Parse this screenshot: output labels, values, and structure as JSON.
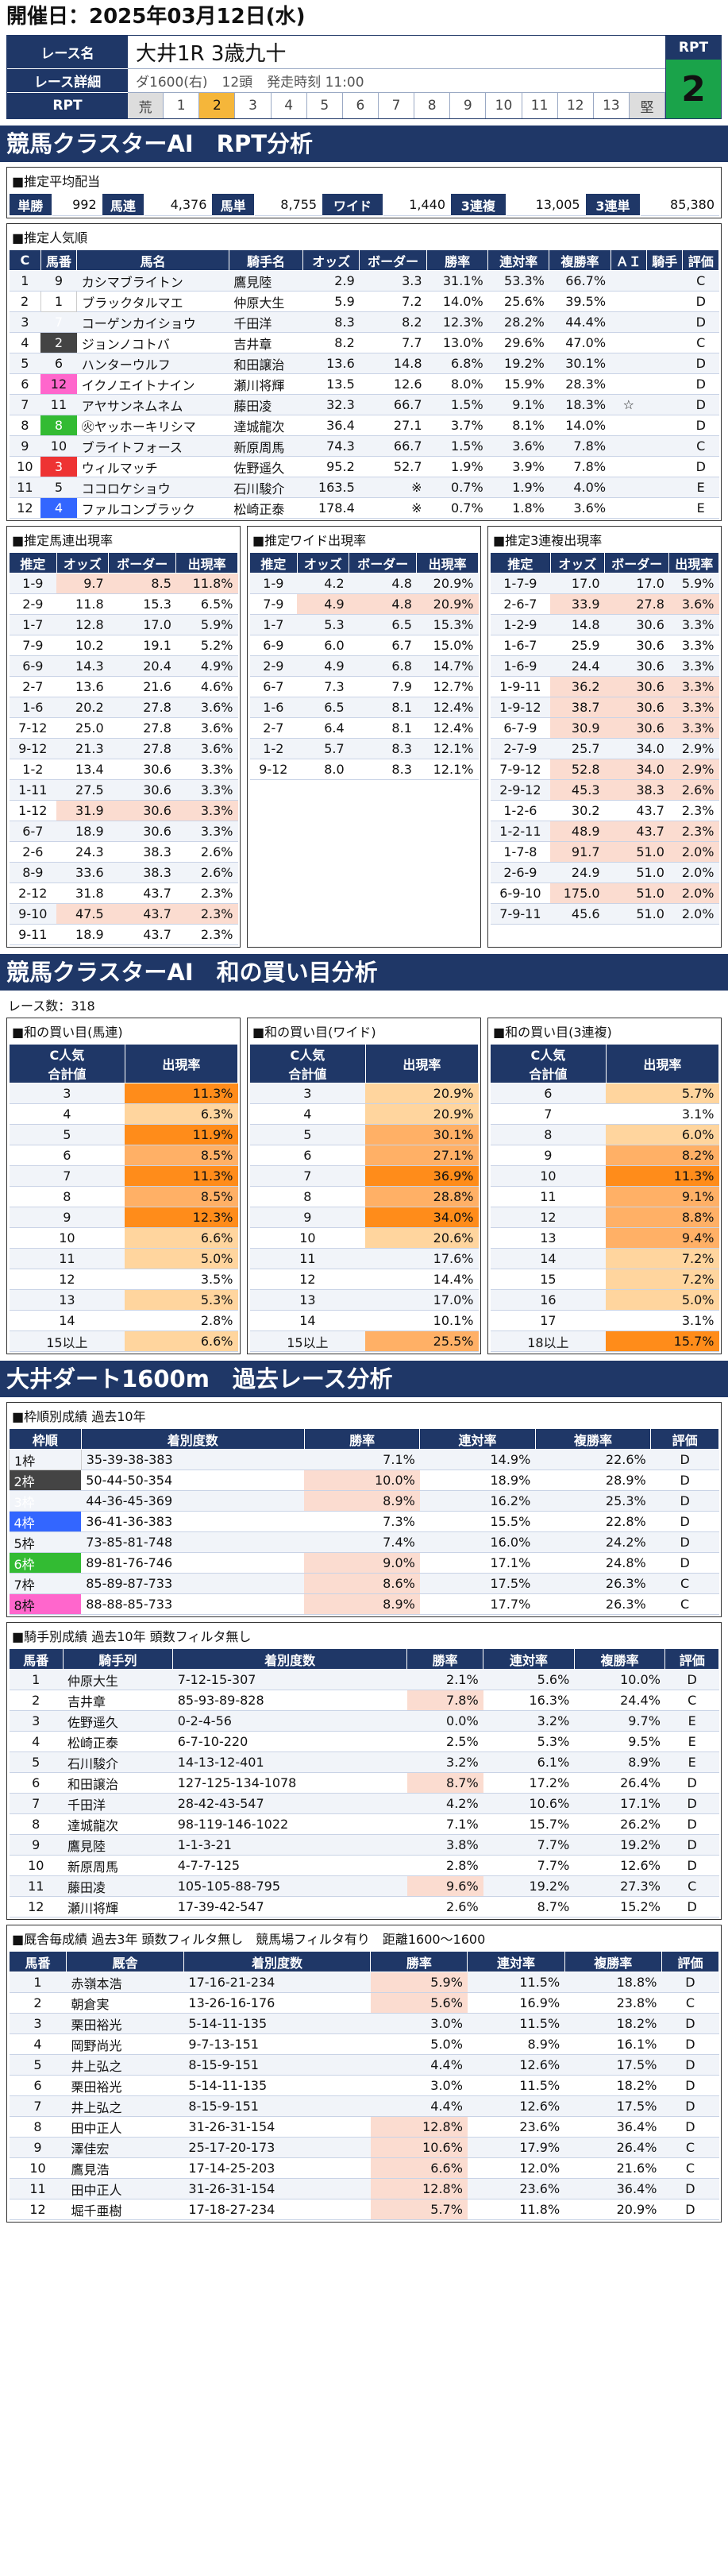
{
  "date_label": "開催日：2025年03月12日(水)",
  "race": {
    "name_label": "レース名",
    "name": "大井1R 3歳九十",
    "detail_label": "レース詳細",
    "course": "ダ1600(右)",
    "heads": "12頭",
    "start": "発走時刻 11:00",
    "rpt_label": "RPT",
    "scale": [
      "荒",
      "1",
      "2",
      "3",
      "4",
      "5",
      "6",
      "7",
      "8",
      "9",
      "10",
      "11",
      "12",
      "13",
      "堅"
    ],
    "rpt_title": "RPT",
    "rpt_value": "2"
  },
  "sec1": "競馬クラスターAI　RPT分析",
  "avg": {
    "title": "■推定平均配当",
    "items": [
      [
        "単勝",
        "992"
      ],
      [
        "馬連",
        "4,376"
      ],
      [
        "馬単",
        "8,755"
      ],
      [
        "ワイド",
        "1,440"
      ],
      [
        "3連複",
        "13,005"
      ],
      [
        "3連単",
        "85,380"
      ]
    ]
  },
  "pop": {
    "title": "■推定人気順",
    "headers": [
      "C",
      "馬番",
      "馬名",
      "騎手名",
      "オッズ",
      "ボーダー",
      "勝率",
      "連対率",
      "複勝率",
      "ＡＩ",
      "騎手",
      "評価"
    ],
    "rows": [
      [
        "1",
        "9",
        "カシマブライトン",
        "鷹見陸",
        "2.9",
        "3.3",
        "31.1%",
        "53.3%",
        "66.7%",
        "",
        "",
        "C"
      ],
      [
        "2",
        "1",
        "ブラックタルマエ",
        "仲原大生",
        "5.9",
        "7.2",
        "14.0%",
        "25.6%",
        "39.5%",
        "",
        "",
        "D"
      ],
      [
        "3",
        "7",
        "コーゲンカイショウ",
        "千田洋",
        "8.3",
        "8.2",
        "12.3%",
        "28.2%",
        "44.4%",
        "",
        "",
        "D"
      ],
      [
        "4",
        "2",
        "ジョンノコトバ",
        "吉井章",
        "8.2",
        "7.7",
        "13.0%",
        "29.6%",
        "47.0%",
        "",
        "",
        "C"
      ],
      [
        "5",
        "6",
        "ハンターウルフ",
        "和田譲治",
        "13.6",
        "14.8",
        "6.8%",
        "19.2%",
        "30.1%",
        "",
        "",
        "D"
      ],
      [
        "6",
        "12",
        "イクノエイトナイン",
        "瀬川将輝",
        "13.5",
        "12.6",
        "8.0%",
        "15.9%",
        "28.3%",
        "",
        "",
        "D"
      ],
      [
        "7",
        "11",
        "アヤサンネムネム",
        "藤田凌",
        "32.3",
        "66.7",
        "1.5%",
        "9.1%",
        "18.3%",
        "☆",
        "",
        "D"
      ],
      [
        "8",
        "8",
        "㊋ヤッホーキリシマ",
        "達城龍次",
        "36.4",
        "27.1",
        "3.7%",
        "8.1%",
        "14.0%",
        "",
        "",
        "D"
      ],
      [
        "9",
        "10",
        "ブライトフォース",
        "新原周馬",
        "74.3",
        "66.7",
        "1.5%",
        "3.6%",
        "7.8%",
        "",
        "",
        "C"
      ],
      [
        "10",
        "3",
        "ウィルマッチ",
        "佐野遥久",
        "95.2",
        "52.7",
        "1.9%",
        "3.9%",
        "7.8%",
        "",
        "",
        "D"
      ],
      [
        "11",
        "5",
        "ココロケショウ",
        "石川駿介",
        "163.5",
        "※",
        "0.7%",
        "1.9%",
        "4.0%",
        "",
        "",
        "E"
      ],
      [
        "12",
        "4",
        "ファルコンブラック",
        "松崎正泰",
        "178.4",
        "※",
        "0.7%",
        "1.8%",
        "3.6%",
        "",
        "",
        "E"
      ]
    ]
  },
  "umaren": {
    "title": "■推定馬連出現率",
    "headers": [
      "推定",
      "オッズ",
      "ボーダー",
      "出現率"
    ],
    "rows": [
      [
        "1-9",
        "9.7",
        "8.5",
        "11.8%"
      ],
      [
        "2-9",
        "11.8",
        "15.3",
        "6.5%"
      ],
      [
        "1-7",
        "12.8",
        "17.0",
        "5.9%"
      ],
      [
        "7-9",
        "10.2",
        "19.1",
        "5.2%"
      ],
      [
        "6-9",
        "14.3",
        "20.4",
        "4.9%"
      ],
      [
        "2-7",
        "13.6",
        "21.6",
        "4.6%"
      ],
      [
        "1-6",
        "20.2",
        "27.8",
        "3.6%"
      ],
      [
        "7-12",
        "25.0",
        "27.8",
        "3.6%"
      ],
      [
        "9-12",
        "21.3",
        "27.8",
        "3.6%"
      ],
      [
        "1-2",
        "13.4",
        "30.6",
        "3.3%"
      ],
      [
        "1-11",
        "27.5",
        "30.6",
        "3.3%"
      ],
      [
        "1-12",
        "31.9",
        "30.6",
        "3.3%"
      ],
      [
        "6-7",
        "18.9",
        "30.6",
        "3.3%"
      ],
      [
        "2-6",
        "24.3",
        "38.3",
        "2.6%"
      ],
      [
        "8-9",
        "33.6",
        "38.3",
        "2.6%"
      ],
      [
        "2-12",
        "31.8",
        "43.7",
        "2.3%"
      ],
      [
        "9-10",
        "47.5",
        "43.7",
        "2.3%"
      ],
      [
        "9-11",
        "18.9",
        "43.7",
        "2.3%"
      ]
    ]
  },
  "wide": {
    "title": "■推定ワイド出現率",
    "headers": [
      "推定",
      "オッズ",
      "ボーダー",
      "出現率"
    ],
    "rows": [
      [
        "1-9",
        "4.2",
        "4.8",
        "20.9%"
      ],
      [
        "7-9",
        "4.9",
        "4.8",
        "20.9%"
      ],
      [
        "1-7",
        "5.3",
        "6.5",
        "15.3%"
      ],
      [
        "6-9",
        "6.0",
        "6.7",
        "15.0%"
      ],
      [
        "2-9",
        "4.9",
        "6.8",
        "14.7%"
      ],
      [
        "6-7",
        "7.3",
        "7.9",
        "12.7%"
      ],
      [
        "1-6",
        "6.5",
        "8.1",
        "12.4%"
      ],
      [
        "2-7",
        "6.4",
        "8.1",
        "12.4%"
      ],
      [
        "1-2",
        "5.7",
        "8.3",
        "12.1%"
      ],
      [
        "9-12",
        "8.0",
        "8.3",
        "12.1%"
      ]
    ]
  },
  "trio": {
    "title": "■推定3連複出現率",
    "headers": [
      "推定",
      "オッズ",
      "ボーダー",
      "出現率"
    ],
    "rows": [
      [
        "1-7-9",
        "17.0",
        "17.0",
        "5.9%"
      ],
      [
        "2-6-7",
        "33.9",
        "27.8",
        "3.6%"
      ],
      [
        "1-2-9",
        "14.8",
        "30.6",
        "3.3%"
      ],
      [
        "1-6-7",
        "25.9",
        "30.6",
        "3.3%"
      ],
      [
        "1-6-9",
        "24.4",
        "30.6",
        "3.3%"
      ],
      [
        "1-9-11",
        "36.2",
        "30.6",
        "3.3%"
      ],
      [
        "1-9-12",
        "38.7",
        "30.6",
        "3.3%"
      ],
      [
        "6-7-9",
        "30.9",
        "30.6",
        "3.3%"
      ],
      [
        "2-7-9",
        "25.7",
        "34.0",
        "2.9%"
      ],
      [
        "7-9-12",
        "52.8",
        "34.0",
        "2.9%"
      ],
      [
        "2-9-12",
        "45.3",
        "38.3",
        "2.6%"
      ],
      [
        "1-2-6",
        "30.2",
        "43.7",
        "2.3%"
      ],
      [
        "1-2-11",
        "48.9",
        "43.7",
        "2.3%"
      ],
      [
        "1-7-8",
        "91.7",
        "51.0",
        "2.0%"
      ],
      [
        "2-6-9",
        "24.9",
        "51.0",
        "2.0%"
      ],
      [
        "6-9-10",
        "175.0",
        "51.0",
        "2.0%"
      ],
      [
        "7-9-11",
        "45.6",
        "51.0",
        "2.0%"
      ]
    ]
  },
  "sec2": "競馬クラスターAI　和の買い目分析",
  "race_count": "レース数：318",
  "sum_umaren": {
    "title": "■和の買い目(馬連)",
    "headers": [
      "C人気\n合計値",
      "出現率"
    ],
    "rows": [
      [
        "3",
        "11.3%"
      ],
      [
        "4",
        "6.3%"
      ],
      [
        "5",
        "11.9%"
      ],
      [
        "6",
        "8.5%"
      ],
      [
        "7",
        "11.3%"
      ],
      [
        "8",
        "8.5%"
      ],
      [
        "9",
        "12.3%"
      ],
      [
        "10",
        "6.6%"
      ],
      [
        "11",
        "5.0%"
      ],
      [
        "12",
        "3.5%"
      ],
      [
        "13",
        "5.3%"
      ],
      [
        "14",
        "2.8%"
      ],
      [
        "15以上",
        "6.6%"
      ]
    ]
  },
  "sum_wide": {
    "title": "■和の買い目(ワイド)",
    "headers": [
      "C人気\n合計値",
      "出現率"
    ],
    "rows": [
      [
        "3",
        "20.9%"
      ],
      [
        "4",
        "20.9%"
      ],
      [
        "5",
        "30.1%"
      ],
      [
        "6",
        "27.1%"
      ],
      [
        "7",
        "36.9%"
      ],
      [
        "8",
        "28.8%"
      ],
      [
        "9",
        "34.0%"
      ],
      [
        "10",
        "20.6%"
      ],
      [
        "11",
        "17.6%"
      ],
      [
        "12",
        "14.4%"
      ],
      [
        "13",
        "17.0%"
      ],
      [
        "14",
        "10.1%"
      ],
      [
        "15以上",
        "25.5%"
      ]
    ]
  },
  "sum_trio": {
    "title": "■和の買い目(3連複)",
    "headers": [
      "C人気\n合計値",
      "出現率"
    ],
    "rows": [
      [
        "6",
        "5.7%"
      ],
      [
        "7",
        "3.1%"
      ],
      [
        "8",
        "6.0%"
      ],
      [
        "9",
        "8.2%"
      ],
      [
        "10",
        "11.3%"
      ],
      [
        "11",
        "9.1%"
      ],
      [
        "12",
        "8.8%"
      ],
      [
        "13",
        "9.4%"
      ],
      [
        "14",
        "7.2%"
      ],
      [
        "15",
        "7.2%"
      ],
      [
        "16",
        "5.0%"
      ],
      [
        "17",
        "3.1%"
      ],
      [
        "18以上",
        "15.7%"
      ]
    ]
  },
  "sec3": "大井ダート1600m　過去レース分析",
  "frame": {
    "title": "■枠順別成績 過去10年",
    "headers": [
      "枠順",
      "着別度数",
      "勝率",
      "連対率",
      "複勝率",
      "評価"
    ],
    "rows": [
      [
        "1枠",
        "35-39-38-383",
        "7.1%",
        "14.9%",
        "22.6%",
        "D"
      ],
      [
        "2枠",
        "50-44-50-354",
        "10.0%",
        "18.9%",
        "28.9%",
        "D"
      ],
      [
        "3枠",
        "44-36-45-369",
        "8.9%",
        "16.2%",
        "25.3%",
        "D"
      ],
      [
        "4枠",
        "36-41-36-383",
        "7.3%",
        "15.5%",
        "22.8%",
        "D"
      ],
      [
        "5枠",
        "73-85-81-748",
        "7.4%",
        "16.0%",
        "24.2%",
        "D"
      ],
      [
        "6枠",
        "89-81-76-746",
        "9.0%",
        "17.1%",
        "24.8%",
        "D"
      ],
      [
        "7枠",
        "85-89-87-733",
        "8.6%",
        "17.5%",
        "26.3%",
        "C"
      ],
      [
        "8枠",
        "88-88-85-733",
        "8.9%",
        "17.7%",
        "26.3%",
        "C"
      ]
    ]
  },
  "jockey": {
    "title": "■騎手別成績 過去10年 頭数フィルタ無し",
    "headers": [
      "馬番",
      "騎手列",
      "着別度数",
      "勝率",
      "連対率",
      "複勝率",
      "評価"
    ],
    "rows": [
      [
        "1",
        "仲原大生",
        "7-12-15-307",
        "2.1%",
        "5.6%",
        "10.0%",
        "D"
      ],
      [
        "2",
        "吉井章",
        "85-93-89-828",
        "7.8%",
        "16.3%",
        "24.4%",
        "C"
      ],
      [
        "3",
        "佐野遥久",
        "0-2-4-56",
        "0.0%",
        "3.2%",
        "9.7%",
        "E"
      ],
      [
        "4",
        "松崎正泰",
        "6-7-10-220",
        "2.5%",
        "5.3%",
        "9.5%",
        "E"
      ],
      [
        "5",
        "石川駿介",
        "14-13-12-401",
        "3.2%",
        "6.1%",
        "8.9%",
        "E"
      ],
      [
        "6",
        "和田譲治",
        "127-125-134-1078",
        "8.7%",
        "17.2%",
        "26.4%",
        "D"
      ],
      [
        "7",
        "千田洋",
        "28-42-43-547",
        "4.2%",
        "10.6%",
        "17.1%",
        "D"
      ],
      [
        "8",
        "達城龍次",
        "98-119-146-1022",
        "7.1%",
        "15.7%",
        "26.2%",
        "D"
      ],
      [
        "9",
        "鷹見陸",
        "1-1-3-21",
        "3.8%",
        "7.7%",
        "19.2%",
        "D"
      ],
      [
        "10",
        "新原周馬",
        "4-7-7-125",
        "2.8%",
        "7.7%",
        "12.6%",
        "D"
      ],
      [
        "11",
        "藤田凌",
        "105-105-88-795",
        "9.6%",
        "19.2%",
        "27.3%",
        "C"
      ],
      [
        "12",
        "瀬川将輝",
        "17-39-42-547",
        "2.6%",
        "8.7%",
        "15.2%",
        "D"
      ]
    ]
  },
  "trainer": {
    "title": "■厩舎毎成績 過去3年 頭数フィルタ無し　競馬場フィルタ有り　距離1600～1600",
    "headers": [
      "馬番",
      "厩舎",
      "着別度数",
      "勝率",
      "連対率",
      "複勝率",
      "評価"
    ],
    "rows": [
      [
        "1",
        "赤嶺本浩",
        "17-16-21-234",
        "5.9%",
        "11.5%",
        "18.8%",
        "D"
      ],
      [
        "2",
        "朝倉実",
        "13-26-16-176",
        "5.6%",
        "16.9%",
        "23.8%",
        "C"
      ],
      [
        "3",
        "栗田裕光",
        "5-14-11-135",
        "3.0%",
        "11.5%",
        "18.2%",
        "D"
      ],
      [
        "4",
        "岡野尚光",
        "9-7-13-151",
        "5.0%",
        "8.9%",
        "16.1%",
        "D"
      ],
      [
        "5",
        "井上弘之",
        "8-15-9-151",
        "4.4%",
        "12.6%",
        "17.5%",
        "D"
      ],
      [
        "6",
        "栗田裕光",
        "5-14-11-135",
        "3.0%",
        "11.5%",
        "18.2%",
        "D"
      ],
      [
        "7",
        "井上弘之",
        "8-15-9-151",
        "4.4%",
        "12.6%",
        "17.5%",
        "D"
      ],
      [
        "8",
        "田中正人",
        "31-26-31-154",
        "12.8%",
        "23.6%",
        "36.4%",
        "D"
      ],
      [
        "9",
        "澤佳宏",
        "25-17-20-173",
        "10.6%",
        "17.9%",
        "26.4%",
        "C"
      ],
      [
        "10",
        "鷹見浩",
        "17-14-25-203",
        "6.6%",
        "12.0%",
        "21.6%",
        "C"
      ],
      [
        "11",
        "田中正人",
        "31-26-31-154",
        "12.8%",
        "23.6%",
        "36.4%",
        "D"
      ],
      [
        "12",
        "堀千亜樹",
        "17-18-27-234",
        "5.7%",
        "11.8%",
        "20.9%",
        "D"
      ]
    ]
  }
}
